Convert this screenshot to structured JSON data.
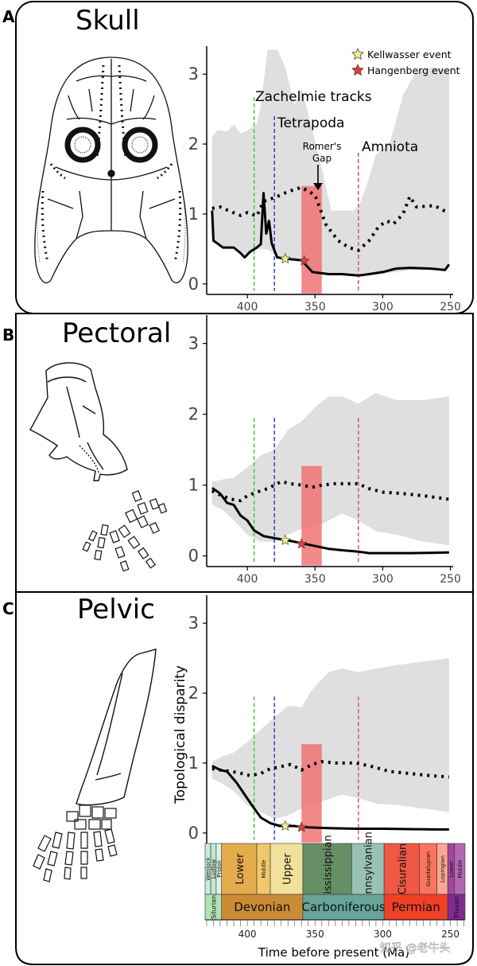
{
  "chart_data": {
    "type": "line",
    "x_axis": {
      "domain": [
        430,
        248
      ],
      "ticks": [
        400,
        350,
        300,
        250
      ]
    },
    "y_axis": {
      "domain": [
        -0.15,
        3.4
      ],
      "ticks": [
        0,
        1,
        2,
        3
      ]
    },
    "ylabel": "Topological disparity",
    "xlabel": "Time before present (Ma)",
    "legend": {
      "position": "top-right",
      "items": [
        {
          "label": "Kellwasser event",
          "color": "#f3ef8a"
        },
        {
          "label": "Hangenberg event",
          "color": "#e83a3a"
        }
      ]
    },
    "events": [
      {
        "label": "Zachelmie tracks",
        "x": 395,
        "color": "#3ec43e"
      },
      {
        "label": "Tetrapoda",
        "x": 380,
        "color": "#2a2ad0"
      },
      {
        "label": "Amniota",
        "x": 318,
        "color": "#e24a4a"
      }
    ],
    "gap": {
      "label_line1": "Romer's",
      "label_line2": "Gap",
      "x0": 360,
      "x1": 345
    },
    "panels": [
      {
        "letter": "A",
        "title": "Skull",
        "solid": [
          [
            426,
            1.05
          ],
          [
            425,
            0.62
          ],
          [
            418,
            0.52
          ],
          [
            410,
            0.52
          ],
          [
            405,
            0.44
          ],
          [
            402,
            0.38
          ],
          [
            398,
            0.46
          ],
          [
            393,
            0.52
          ],
          [
            390,
            0.57
          ],
          [
            388,
            1.3
          ],
          [
            386,
            0.72
          ],
          [
            384,
            0.9
          ],
          [
            382,
            0.58
          ],
          [
            378,
            0.38
          ],
          [
            372,
            0.36
          ],
          [
            360,
            0.34
          ],
          [
            352,
            0.17
          ],
          [
            340,
            0.14
          ],
          [
            330,
            0.14
          ],
          [
            318,
            0.12
          ],
          [
            310,
            0.14
          ],
          [
            300,
            0.17
          ],
          [
            290,
            0.22
          ],
          [
            280,
            0.23
          ],
          [
            265,
            0.22
          ],
          [
            254,
            0.2
          ],
          [
            251,
            0.28
          ]
        ],
        "dotted": [
          [
            426,
            1.08
          ],
          [
            420,
            1.1
          ],
          [
            413,
            1.04
          ],
          [
            405,
            0.98
          ],
          [
            400,
            1.02
          ],
          [
            393,
            0.97
          ],
          [
            388,
            1.18
          ],
          [
            385,
            1.2
          ],
          [
            378,
            1.25
          ],
          [
            370,
            1.32
          ],
          [
            360,
            1.38
          ],
          [
            350,
            1.27
          ],
          [
            342,
            0.85
          ],
          [
            333,
            0.62
          ],
          [
            325,
            0.52
          ],
          [
            318,
            0.48
          ],
          [
            310,
            0.62
          ],
          [
            303,
            0.82
          ],
          [
            297,
            0.9
          ],
          [
            292,
            0.86
          ],
          [
            285,
            1.0
          ],
          [
            280,
            1.25
          ],
          [
            275,
            1.1
          ],
          [
            262,
            1.12
          ],
          [
            255,
            1.05
          ],
          [
            251,
            1.02
          ]
        ],
        "band": {
          "upper": [
            [
              426,
              2.1
            ],
            [
              422,
              2.2
            ],
            [
              415,
              2.18
            ],
            [
              410,
              2.28
            ],
            [
              405,
              2.15
            ],
            [
              400,
              2.2
            ],
            [
              393,
              2.28
            ],
            [
              390,
              2.55
            ],
            [
              385,
              3.35
            ],
            [
              378,
              3.35
            ],
            [
              372,
              3.1
            ],
            [
              365,
              2.55
            ],
            [
              360,
              2.8
            ],
            [
              352,
              2.2
            ],
            [
              345,
              1.65
            ],
            [
              338,
              1.05
            ],
            [
              330,
              1.05
            ],
            [
              322,
              1.05
            ],
            [
              318,
              1.1
            ],
            [
              312,
              1.4
            ],
            [
              305,
              1.85
            ],
            [
              295,
              2.0
            ],
            [
              285,
              2.7
            ],
            [
              275,
              3.05
            ],
            [
              262,
              3.1
            ],
            [
              251,
              3.05
            ]
          ],
          "lower": [
            [
              251,
              0.22
            ],
            [
              265,
              0.2
            ],
            [
              280,
              0.2
            ],
            [
              300,
              0.14
            ],
            [
              318,
              0.12
            ],
            [
              330,
              0.12
            ],
            [
              340,
              0.14
            ],
            [
              352,
              0.18
            ],
            [
              360,
              0.3
            ],
            [
              372,
              0.36
            ],
            [
              380,
              0.42
            ],
            [
              385,
              0.5
            ],
            [
              393,
              0.5
            ],
            [
              400,
              0.4
            ],
            [
              410,
              0.52
            ],
            [
              420,
              0.54
            ],
            [
              426,
              0.6
            ]
          ]
        },
        "kellwasser": [
          372,
          0.36
        ],
        "hangenberg": [
          358,
          0.33
        ]
      },
      {
        "letter": "B",
        "title": "Pectoral",
        "solid": [
          [
            426,
            0.96
          ],
          [
            420,
            0.88
          ],
          [
            415,
            0.75
          ],
          [
            410,
            0.72
          ],
          [
            405,
            0.57
          ],
          [
            400,
            0.5
          ],
          [
            395,
            0.36
          ],
          [
            388,
            0.28
          ],
          [
            380,
            0.25
          ],
          [
            370,
            0.22
          ],
          [
            360,
            0.18
          ],
          [
            350,
            0.14
          ],
          [
            340,
            0.1
          ],
          [
            330,
            0.08
          ],
          [
            318,
            0.06
          ],
          [
            310,
            0.04
          ],
          [
            300,
            0.04
          ],
          [
            280,
            0.04
          ],
          [
            260,
            0.045
          ],
          [
            251,
            0.05
          ]
        ],
        "dotted": [
          [
            426,
            0.92
          ],
          [
            420,
            0.86
          ],
          [
            412,
            0.8
          ],
          [
            405,
            0.78
          ],
          [
            400,
            0.85
          ],
          [
            393,
            0.9
          ],
          [
            385,
            0.95
          ],
          [
            375,
            1.05
          ],
          [
            368,
            1.02
          ],
          [
            360,
            1.0
          ],
          [
            352,
            0.97
          ],
          [
            345,
            1.0
          ],
          [
            335,
            1.02
          ],
          [
            318,
            1.02
          ],
          [
            310,
            0.95
          ],
          [
            300,
            0.9
          ],
          [
            285,
            0.88
          ],
          [
            270,
            0.85
          ],
          [
            251,
            0.8
          ]
        ],
        "band": {
          "upper": [
            [
              426,
              1.05
            ],
            [
              418,
              1.08
            ],
            [
              410,
              1.1
            ],
            [
              400,
              1.25
            ],
            [
              390,
              1.42
            ],
            [
              380,
              1.5
            ],
            [
              370,
              1.78
            ],
            [
              360,
              1.9
            ],
            [
              350,
              2.1
            ],
            [
              340,
              2.25
            ],
            [
              330,
              2.25
            ],
            [
              318,
              2.15
            ],
            [
              305,
              2.3
            ],
            [
              290,
              2.2
            ],
            [
              270,
              2.2
            ],
            [
              251,
              2.25
            ]
          ],
          "lower": [
            [
              251,
              0.15
            ],
            [
              270,
              0.2
            ],
            [
              290,
              0.3
            ],
            [
              305,
              0.35
            ],
            [
              318,
              0.5
            ],
            [
              330,
              0.6
            ],
            [
              345,
              0.45
            ],
            [
              360,
              0.38
            ],
            [
              370,
              0.3
            ],
            [
              380,
              0.2
            ],
            [
              390,
              0.2
            ],
            [
              400,
              0.3
            ],
            [
              410,
              0.5
            ],
            [
              418,
              0.65
            ],
            [
              426,
              0.72
            ]
          ]
        },
        "kellwasser": [
          372,
          0.22
        ],
        "hangenberg": [
          360,
          0.17
        ]
      },
      {
        "letter": "C",
        "title": "Pelvic",
        "solid": [
          [
            426,
            0.96
          ],
          [
            420,
            0.9
          ],
          [
            415,
            0.88
          ],
          [
            408,
            0.72
          ],
          [
            402,
            0.55
          ],
          [
            396,
            0.38
          ],
          [
            390,
            0.22
          ],
          [
            383,
            0.14
          ],
          [
            376,
            0.1
          ],
          [
            366,
            0.1
          ],
          [
            355,
            0.08
          ],
          [
            340,
            0.07
          ],
          [
            320,
            0.06
          ],
          [
            300,
            0.06
          ],
          [
            280,
            0.055
          ],
          [
            260,
            0.05
          ],
          [
            251,
            0.05
          ]
        ],
        "dotted": [
          [
            426,
            0.92
          ],
          [
            420,
            0.9
          ],
          [
            412,
            0.88
          ],
          [
            404,
            0.85
          ],
          [
            398,
            0.82
          ],
          [
            390,
            0.85
          ],
          [
            383,
            0.92
          ],
          [
            375,
            0.95
          ],
          [
            368,
            0.98
          ],
          [
            360,
            0.9
          ],
          [
            352,
            0.98
          ],
          [
            345,
            1.02
          ],
          [
            335,
            1.0
          ],
          [
            320,
            1.0
          ],
          [
            308,
            0.95
          ],
          [
            295,
            0.88
          ],
          [
            280,
            0.85
          ],
          [
            265,
            0.82
          ],
          [
            251,
            0.8
          ]
        ],
        "band": {
          "upper": [
            [
              426,
              1.02
            ],
            [
              418,
              1.1
            ],
            [
              410,
              1.15
            ],
            [
              400,
              1.3
            ],
            [
              390,
              1.48
            ],
            [
              380,
              1.65
            ],
            [
              370,
              1.82
            ],
            [
              360,
              1.8
            ],
            [
              352,
              2.05
            ],
            [
              340,
              2.3
            ],
            [
              330,
              2.35
            ],
            [
              318,
              2.3
            ],
            [
              305,
              2.35
            ],
            [
              290,
              2.4
            ],
            [
              270,
              2.45
            ],
            [
              251,
              2.5
            ]
          ],
          "lower": [
            [
              251,
              0.3
            ],
            [
              270,
              0.35
            ],
            [
              290,
              0.4
            ],
            [
              305,
              0.42
            ],
            [
              318,
              0.5
            ],
            [
              330,
              0.55
            ],
            [
              345,
              0.45
            ],
            [
              360,
              0.35
            ],
            [
              370,
              0.25
            ],
            [
              380,
              0.2
            ],
            [
              390,
              0.3
            ],
            [
              400,
              0.4
            ],
            [
              410,
              0.6
            ],
            [
              418,
              0.7
            ],
            [
              426,
              0.78
            ]
          ]
        },
        "kellwasser": [
          372,
          0.1
        ],
        "hangenberg": [
          360,
          0.08
        ]
      }
    ],
    "timescale": {
      "epochs": [
        {
          "label": "Wenlock",
          "x0": 433,
          "x1": 427,
          "color": "#c9ebd9"
        },
        {
          "label": "Ludlow",
          "x0": 427,
          "x1": 423,
          "color": "#c5e6d3"
        },
        {
          "label": "Pridoli",
          "x0": 423,
          "x1": 419,
          "color": "#dff1e6"
        },
        {
          "label": "Lower",
          "x0": 419,
          "x1": 393,
          "color": "#e5ac4d"
        },
        {
          "label": "Middle",
          "x0": 393,
          "x1": 383,
          "color": "#f1c868"
        },
        {
          "label": "Upper",
          "x0": 383,
          "x1": 359,
          "color": "#f1e19d"
        },
        {
          "label": "Mississippian",
          "x0": 359,
          "x1": 323,
          "color": "#678f66"
        },
        {
          "label": "Pennsylvanian",
          "x0": 323,
          "x1": 299,
          "color": "#99c2b5"
        },
        {
          "label": "Cisuralian",
          "x0": 299,
          "x1": 273,
          "color": "#ef5845"
        },
        {
          "label": "Guadalupian",
          "x0": 273,
          "x1": 260,
          "color": "#fb745c"
        },
        {
          "label": "Lopingian",
          "x0": 260,
          "x1": 252,
          "color": "#fba794"
        },
        {
          "label": "Lower",
          "x0": 252,
          "x1": 247,
          "color": "#a4469f"
        },
        {
          "label": "Middle",
          "x0": 247,
          "x1": 237,
          "color": "#b168b1"
        }
      ],
      "periods": [
        {
          "label": "Silurian",
          "x0": 433,
          "x1": 419,
          "color": "#b3e1b6"
        },
        {
          "label": "Devonian",
          "x0": 419,
          "x1": 359,
          "color": "#cb8c37"
        },
        {
          "label": "Carboniferous",
          "x0": 359,
          "x1": 299,
          "color": "#67a599"
        },
        {
          "label": "Permian",
          "x0": 299,
          "x1": 252,
          "color": "#f04028"
        },
        {
          "label": "Triassic",
          "x0": 252,
          "x1": 237,
          "color": "#812b92"
        }
      ],
      "ticks": [
        400,
        350,
        300,
        250
      ]
    },
    "watermark": "知乎 @老牛头"
  }
}
